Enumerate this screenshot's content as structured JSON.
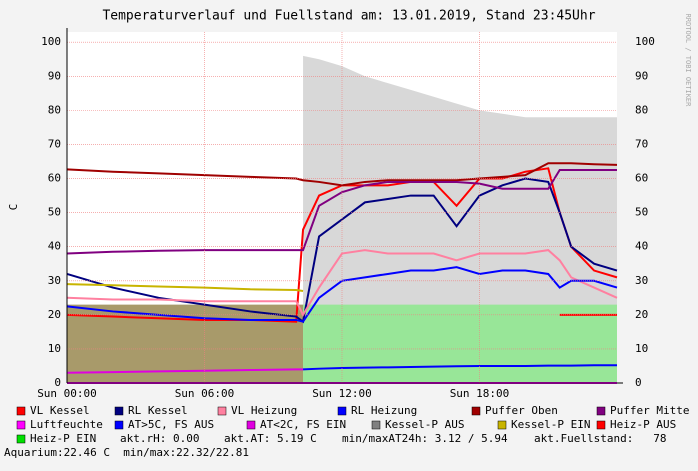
{
  "chart_data": {
    "type": "line",
    "title": "Temperaturverlauf und Fuellstand am: 13.01.2019, Stand 23:45Uhr",
    "y_label": "C",
    "watermark": "RRDTOOL / TOBI OETIKER",
    "xlim": [
      0,
      24
    ],
    "ylim": [
      0,
      103
    ],
    "xticks": [
      {
        "value": 0,
        "label": "Sun 00:00"
      },
      {
        "value": 6,
        "label": "Sun 06:00"
      },
      {
        "value": 12,
        "label": "Sun 12:00"
      },
      {
        "value": 18,
        "label": "Sun 18:00"
      }
    ],
    "yticks": [
      0,
      10,
      20,
      30,
      40,
      50,
      60,
      70,
      80,
      90,
      100
    ],
    "grid": true,
    "x": [
      0,
      2,
      4,
      6,
      8,
      10,
      10.3,
      11,
      12,
      13,
      14,
      15,
      16,
      17,
      18,
      19,
      20,
      21,
      21.5,
      22,
      23,
      24
    ],
    "background_area": {
      "color": "#d8d8d8",
      "values": [
        null,
        null,
        null,
        null,
        null,
        null,
        96,
        95,
        93,
        90,
        88,
        86,
        84,
        82,
        80,
        79,
        78,
        78,
        78,
        78,
        78,
        78
      ]
    },
    "series": [
      {
        "name": "VL Kessel",
        "color": "#ff0000",
        "values": [
          20,
          19.5,
          19,
          18.5,
          18.5,
          18,
          45,
          55,
          58,
          58,
          58,
          59,
          59,
          52,
          60,
          60,
          62,
          63,
          50,
          40,
          33,
          31
        ]
      },
      {
        "name": "RL Kessel",
        "color": "#000080",
        "values": [
          32,
          28,
          25,
          23,
          21,
          19.5,
          18,
          43,
          48,
          53,
          54,
          55,
          55,
          46,
          55,
          58,
          60,
          59,
          50,
          40,
          35,
          33
        ]
      },
      {
        "name": "VL Heizung",
        "color": "#ff80a0",
        "values": [
          25,
          24.5,
          24.5,
          24,
          24,
          24,
          20,
          28,
          38,
          39,
          38,
          38,
          38,
          36,
          38,
          38,
          38,
          39,
          36,
          31,
          28,
          25
        ]
      },
      {
        "name": "RL Heizung",
        "color": "#0000ff",
        "values": [
          22.5,
          21,
          20,
          19,
          18.5,
          18.5,
          18,
          25,
          30,
          31,
          32,
          33,
          33,
          34,
          32,
          33,
          33,
          32,
          28,
          30,
          30,
          28
        ]
      },
      {
        "name": "Puffer Oben",
        "color": "#a00000",
        "values": [
          62.7,
          62,
          61.5,
          61,
          60.5,
          60,
          59.5,
          59,
          58,
          59,
          59.5,
          59.5,
          59.5,
          59.5,
          60,
          60.5,
          61,
          64.5,
          64.5,
          64.5,
          64.2,
          64
        ]
      },
      {
        "name": "Puffer Mitte",
        "color": "#800080",
        "values": [
          38,
          38.5,
          38.8,
          39,
          39,
          39,
          39,
          52,
          56,
          58,
          59,
          59,
          59,
          59,
          58.5,
          57,
          57,
          57,
          62.5,
          62.5,
          62.5,
          62.5
        ]
      },
      {
        "name": "Luftfeuchte",
        "color": "#ff00ff",
        "values": [
          0,
          0,
          0,
          0,
          0,
          0,
          0,
          0,
          0,
          0,
          0,
          0,
          0,
          0,
          0,
          0,
          0,
          0,
          0,
          0,
          0,
          0
        ]
      },
      {
        "name": "AT>5C, FS AUS",
        "color": "#0000ff",
        "values": [
          null,
          null,
          null,
          null,
          null,
          null,
          4,
          4.2,
          4.4,
          4.5,
          4.6,
          4.7,
          4.8,
          4.9,
          5,
          5,
          5,
          5.1,
          5.1,
          5.1,
          5.2,
          5.2
        ]
      },
      {
        "name": "AT<2C, FS EIN",
        "color": "#e000e0",
        "values": [
          3,
          3.2,
          3.4,
          3.6,
          3.8,
          4,
          4,
          null,
          null,
          null,
          null,
          null,
          null,
          null,
          null,
          null,
          null,
          null,
          null,
          null,
          null,
          null
        ]
      },
      {
        "name": "Kessel-P AUS",
        "color": "#808080",
        "fill": true,
        "fill_color": "#a89a6a",
        "values": [
          23,
          23,
          23,
          23,
          23,
          23,
          23,
          null,
          null,
          null,
          null,
          null,
          null,
          null,
          null,
          null,
          null,
          null,
          null,
          null,
          null,
          null
        ]
      },
      {
        "name": "Kessel-P EIN",
        "color": "#c8b400",
        "values": [
          29,
          28.7,
          28.3,
          28,
          27.5,
          27.3,
          27,
          null,
          null,
          null,
          null,
          null,
          null,
          null,
          null,
          null,
          null,
          null,
          null,
          null,
          null,
          null
        ]
      },
      {
        "name": "Heiz-P AUS",
        "color": "#ff0000",
        "values": [
          null,
          null,
          null,
          null,
          null,
          null,
          null,
          null,
          null,
          null,
          null,
          null,
          null,
          null,
          null,
          null,
          null,
          null,
          20,
          20,
          20,
          20
        ]
      },
      {
        "name": "Heiz-P EIN",
        "color": "#00e000",
        "fill": true,
        "fill_color": "#98e698",
        "values": [
          null,
          null,
          null,
          null,
          null,
          null,
          23,
          23,
          23,
          23,
          23,
          23,
          23,
          23,
          23,
          23,
          23,
          23,
          23,
          23,
          23,
          23
        ]
      }
    ],
    "notes": [
      "akt.rH: 0.00",
      "akt.AT: 5.19 C",
      "min/maxAT24h: 3.12 / 5.94",
      "akt.Fuellstand:   78",
      "Aquarium:22.46 C  min/max:22.32/22.81"
    ]
  }
}
